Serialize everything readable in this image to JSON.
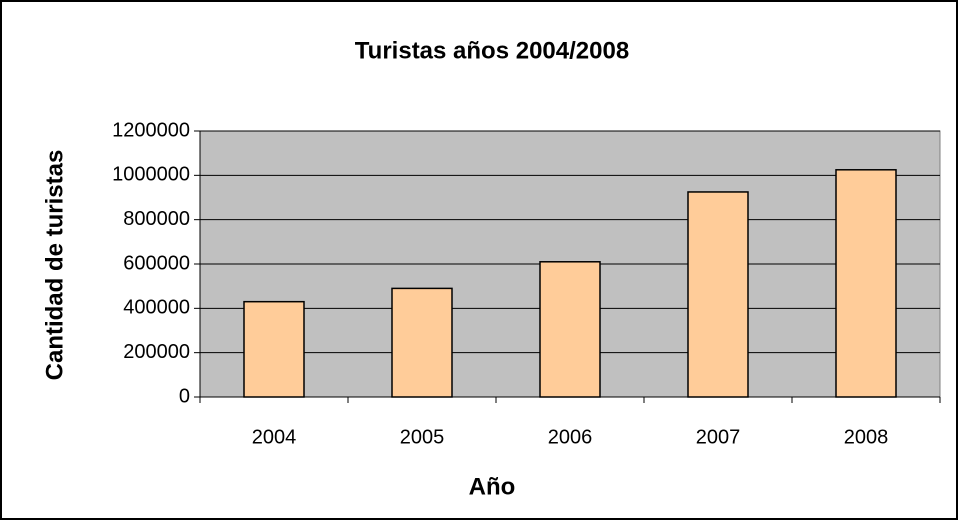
{
  "chart_data": {
    "type": "bar",
    "title": "Turistas años 2004/2008",
    "x_label": "Año",
    "y_label": "Cantidad de turistas",
    "categories": [
      "2004",
      "2005",
      "2006",
      "2007",
      "2008"
    ],
    "values": [
      430000,
      490000,
      610000,
      925000,
      1025000
    ],
    "color": "#ffcc99",
    "ylim": [
      0,
      1200000
    ],
    "yticks": [
      0,
      200000,
      400000,
      600000,
      800000,
      1000000,
      1200000
    ],
    "grid": true
  }
}
